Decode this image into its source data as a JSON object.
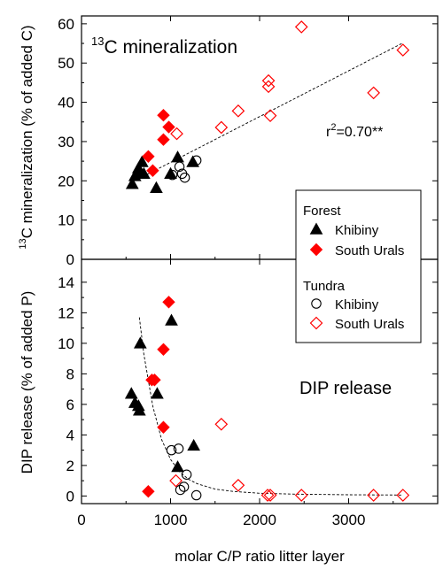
{
  "chart_data": [
    {
      "type": "scatter",
      "panel": "top",
      "annotation": "13C mineralization",
      "ylabel": "13C mineralization (% of added C)",
      "xlabel": "molar C/P ratio litter layer",
      "xlim": [
        0,
        4000
      ],
      "ylim": [
        0,
        62
      ],
      "x_ticks": [
        "0",
        "1000",
        "2000",
        "3000"
      ],
      "y_ticks": [
        "0",
        "10",
        "20",
        "30",
        "40",
        "50",
        "60"
      ],
      "fit": {
        "type": "linear",
        "label": "r2=0.70**",
        "x": [
          650,
          3600
        ],
        "y": [
          20.6,
          55.0
        ]
      },
      "series": [
        {
          "group": "Forest",
          "name": "Khibiny",
          "marker": "triangle",
          "color": "#000000",
          "x": [
            570,
            600,
            640,
            660,
            680,
            700,
            840,
            1000,
            1080,
            1250
          ],
          "y": [
            19.2,
            21.2,
            23.2,
            22.0,
            24.8,
            21.8,
            18.2,
            21.8,
            26.0,
            24.8
          ]
        },
        {
          "group": "Forest",
          "name": "South Urals",
          "marker": "diamond-filled",
          "color": "#ff0000",
          "x": [
            750,
            800,
            920,
            920,
            980
          ],
          "y": [
            26.2,
            22.6,
            30.5,
            36.7,
            33.7
          ]
        },
        {
          "group": "Tundra",
          "name": "Khibiny",
          "marker": "circle-open",
          "color": "#000000",
          "x": [
            1020,
            1100,
            1130,
            1160,
            1290
          ],
          "y": [
            21.5,
            23.6,
            21.8,
            20.8,
            25.2
          ]
        },
        {
          "group": "Tundra",
          "name": "South Urals",
          "marker": "diamond-open",
          "color": "#ff0000",
          "x": [
            1070,
            1570,
            1760,
            2100,
            2100,
            2120,
            2470,
            3280,
            3610
          ],
          "y": [
            32.0,
            33.6,
            37.8,
            45.5,
            44.0,
            36.6,
            59.2,
            42.4,
            53.3
          ]
        }
      ]
    },
    {
      "type": "scatter",
      "panel": "bottom",
      "annotation": "DIP release",
      "ylabel": "DIP release (% of added P)",
      "xlabel": "molar C/P ratio litter layer",
      "xlim": [
        0,
        4000
      ],
      "ylim": [
        -0.5,
        15.5
      ],
      "x_ticks": [
        "0",
        "1000",
        "2000",
        "3000"
      ],
      "y_ticks": [
        "0",
        "2",
        "4",
        "6",
        "8",
        "10",
        "12",
        "14"
      ],
      "fit": {
        "type": "exponential decay",
        "x": [
          650,
          700,
          800,
          900,
          1000,
          1100,
          1200,
          1300,
          1500,
          1700,
          2000,
          2400,
          3000,
          3600
        ],
        "y": [
          11.7,
          9.3,
          5.9,
          3.7,
          2.4,
          1.6,
          1.1,
          0.8,
          0.45,
          0.3,
          0.18,
          0.12,
          0.08,
          0.06
        ]
      },
      "series": [
        {
          "group": "Forest",
          "name": "Khibiny",
          "marker": "triangle",
          "color": "#000000",
          "x": [
            560,
            600,
            640,
            650,
            660,
            1010,
            850,
            1080,
            1260
          ],
          "y": [
            6.7,
            6.1,
            5.9,
            5.6,
            10.0,
            11.5,
            6.7,
            1.9,
            3.3
          ]
        },
        {
          "group": "Forest",
          "name": "South Urals",
          "marker": "diamond-filled",
          "color": "#ff0000",
          "x": [
            750,
            790,
            820,
            920,
            920,
            980
          ],
          "y": [
            0.3,
            7.6,
            7.6,
            4.5,
            9.6,
            12.7
          ]
        },
        {
          "group": "Tundra",
          "name": "Khibiny",
          "marker": "circle-open",
          "color": "#000000",
          "x": [
            1010,
            1090,
            1110,
            1150,
            1180,
            1290
          ],
          "y": [
            3.0,
            3.1,
            0.4,
            0.6,
            1.4,
            0.05
          ]
        },
        {
          "group": "Tundra",
          "name": "South Urals",
          "marker": "diamond-open",
          "color": "#ff0000",
          "x": [
            1060,
            1570,
            1760,
            2090,
            2120,
            2470,
            3280,
            3610
          ],
          "y": [
            1.0,
            4.7,
            0.7,
            0.05,
            0.05,
            0.05,
            0.05,
            0.05
          ]
        }
      ]
    }
  ],
  "legend": {
    "placement": "right, between panels",
    "groups": [
      {
        "title": "Forest",
        "entries": [
          {
            "label": "Khibiny",
            "marker": "triangle",
            "color": "#000000"
          },
          {
            "label": "South Urals",
            "marker": "diamond-filled",
            "color": "#ff0000"
          }
        ]
      },
      {
        "title": "Tundra",
        "entries": [
          {
            "label": "Khibiny",
            "marker": "circle-open",
            "color": "#000000"
          },
          {
            "label": "South Urals",
            "marker": "diamond-open",
            "color": "#ff0000"
          }
        ]
      }
    ]
  }
}
